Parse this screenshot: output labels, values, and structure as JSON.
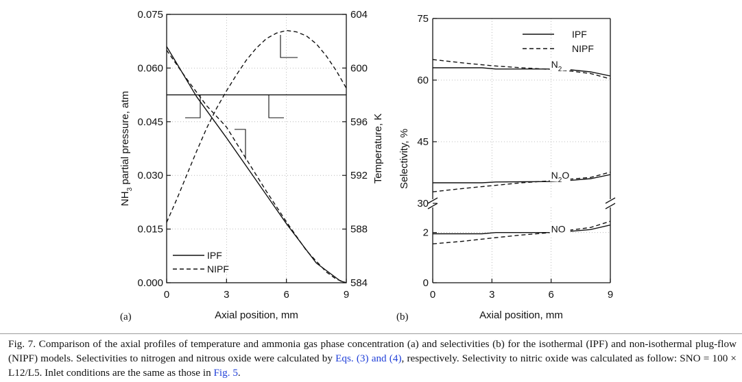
{
  "colors": {
    "text": "#111111",
    "link": "#1f3fd8",
    "grid": "#aaaaaa",
    "line": "#111111"
  },
  "chart_data": [
    {
      "type": "line",
      "panel_label": "(a)",
      "xlabel": "Axial position, mm",
      "ylabel_left": "NH3 partial pressure, atm",
      "ylabel_left_parts": {
        "pre": "NH",
        "sub": "3",
        "post": " partial pressure, atm"
      },
      "ylabel_right": "Temperature, K",
      "xlim": [
        0,
        9
      ],
      "ylim_left": [
        0,
        0.075
      ],
      "ylim_right": [
        584,
        604
      ],
      "xticks": [
        "0",
        "3",
        "6",
        "9"
      ],
      "xtick_values": [
        0,
        3,
        6,
        9
      ],
      "yticks_left": [
        "0.000",
        "0.015",
        "0.030",
        "0.045",
        "0.060",
        "0.075"
      ],
      "yticks_left_values": [
        0,
        0.015,
        0.03,
        0.045,
        0.06,
        0.075
      ],
      "yticks_right": [
        "584",
        "588",
        "592",
        "596",
        "600",
        "604"
      ],
      "yticks_right_values": [
        584,
        588,
        592,
        596,
        600,
        604
      ],
      "grid": "dotted",
      "legend": {
        "position": "bottom-left",
        "entries": [
          "IPF",
          "NIPF"
        ]
      },
      "series": [
        {
          "name": "IPF",
          "axis": "left",
          "style": "solid",
          "x": [
            0,
            1.5,
            3,
            4.5,
            6,
            7.5,
            8.7,
            9
          ],
          "y": [
            0.066,
            0.052,
            0.0405,
            0.0285,
            0.0165,
            0.0055,
            0.0005,
            0
          ]
        },
        {
          "name": "NIPF",
          "axis": "left",
          "style": "dashed",
          "x": [
            0,
            1,
            2,
            3,
            4,
            5,
            6,
            7,
            8,
            8.5,
            9
          ],
          "y": [
            0.065,
            0.057,
            0.0495,
            0.0435,
            0.0345,
            0.0255,
            0.017,
            0.009,
            0.003,
            0.001,
            0
          ]
        },
        {
          "name": "IPF",
          "axis": "right",
          "style": "solid",
          "x": [
            0,
            9
          ],
          "y": [
            598,
            598
          ]
        },
        {
          "name": "NIPF",
          "axis": "right",
          "style": "dashed",
          "x": [
            0,
            0.5,
            1,
            1.5,
            2,
            2.5,
            3,
            3.5,
            4,
            4.5,
            5,
            5.5,
            6,
            6.5,
            7,
            7.5,
            8,
            8.5,
            9
          ],
          "y": [
            588.5,
            590.2,
            592,
            593.8,
            595.5,
            597,
            598.3,
            599.5,
            600.6,
            601.5,
            602.2,
            602.6,
            602.8,
            602.7,
            602.4,
            601.8,
            600.9,
            599.8,
            598.5
          ]
        }
      ]
    },
    {
      "type": "line",
      "panel_label": "(b)",
      "xlabel": "Axial position, mm",
      "ylabel": "Selectivity, %",
      "xlim": [
        0,
        9
      ],
      "xticks": [
        "0",
        "3",
        "6",
        "9"
      ],
      "xtick_values": [
        0,
        3,
        6,
        9
      ],
      "yaxis_break": {
        "lower": [
          0,
          3
        ],
        "upper": [
          30,
          75
        ]
      },
      "yticks": [
        "0",
        "2",
        "30",
        "45",
        "60",
        "75"
      ],
      "ytick_values": [
        0,
        2,
        30,
        45,
        60,
        75
      ],
      "grid": "dotted",
      "legend": {
        "position": "top-right",
        "entries": [
          "IPF",
          "NIPF"
        ]
      },
      "annotations": [
        {
          "text": "N2",
          "parts": {
            "pre": "N",
            "sub": "2",
            "post": ""
          },
          "x": 6,
          "y": 63
        },
        {
          "text": "N2O",
          "parts": {
            "pre": "N",
            "sub": "2",
            "post": "O"
          },
          "x": 6,
          "y": 36
        },
        {
          "text": "NO",
          "parts": {
            "pre": "NO",
            "sub": "",
            "post": ""
          },
          "x": 6,
          "y": 2
        }
      ],
      "series": [
        {
          "name": "IPF",
          "group": "N2",
          "segment": "upper",
          "style": "solid",
          "x": [
            0,
            2.5,
            3.2,
            6,
            7,
            8,
            9
          ],
          "y": [
            63,
            63,
            62.7,
            62.7,
            62.5,
            62,
            61
          ]
        },
        {
          "name": "NIPF",
          "group": "N2",
          "segment": "upper",
          "style": "dashed",
          "x": [
            0,
            1.5,
            3,
            4.5,
            6,
            7,
            8,
            9
          ],
          "y": [
            65,
            64.2,
            63.5,
            63,
            62.6,
            62.2,
            61.6,
            60.3
          ]
        },
        {
          "name": "IPF",
          "group": "N2O",
          "segment": "upper",
          "style": "solid",
          "x": [
            0,
            2.5,
            3.2,
            6,
            7,
            8,
            9
          ],
          "y": [
            35,
            35,
            35.2,
            35.3,
            35.6,
            36,
            37
          ]
        },
        {
          "name": "NIPF",
          "group": "N2O",
          "segment": "upper",
          "style": "dashed",
          "x": [
            0,
            1.5,
            3,
            4.5,
            6,
            7,
            8,
            9
          ],
          "y": [
            32.8,
            33.6,
            34.3,
            35,
            35.5,
            35.9,
            36.3,
            37.6
          ]
        },
        {
          "name": "IPF",
          "group": "NO",
          "segment": "lower",
          "style": "solid",
          "x": [
            0,
            2.5,
            3.2,
            6,
            7,
            8,
            9
          ],
          "y": [
            1.95,
            1.95,
            2.0,
            2.0,
            2.05,
            2.12,
            2.3
          ]
        },
        {
          "name": "NIPF",
          "group": "NO",
          "segment": "lower",
          "style": "dashed",
          "x": [
            0,
            1.5,
            3,
            4.5,
            6,
            7,
            8,
            9
          ],
          "y": [
            1.55,
            1.65,
            1.78,
            1.9,
            2.0,
            2.1,
            2.2,
            2.45
          ]
        }
      ]
    }
  ],
  "caption": {
    "parts": [
      "Fig. 7. Comparison of the axial profiles of temperature and ammonia gas phase concentration (a) and selectivities (b) for the isothermal (IPF) and non-isothermal plug-flow (NIPF) models. Selectivities to nitrogen and nitrous oxide were calculated by ",
      "Eqs. (3) and (4)",
      ", respectively. Selectivity to nitric oxide was calculated as follow: SNO = 100 × L12/L5. Inlet conditions are the same as those in ",
      "Fig. 5",
      "."
    ]
  }
}
